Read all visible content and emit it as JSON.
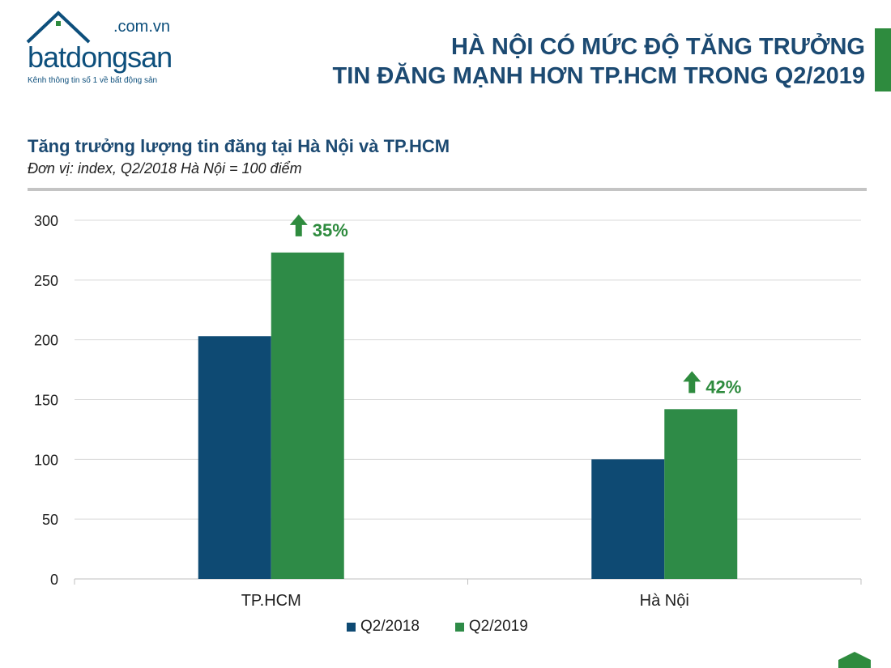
{
  "header": {
    "logo": {
      "domain": ".com.vn",
      "word": "batdongsan",
      "tagline": "Kênh thông tin số 1 về bất động sản"
    },
    "title_line1": "HÀ NỘI CÓ MỨC ĐỘ TĂNG TRƯỞNG",
    "title_line2": "TIN ĐĂNG MẠNH HƠN TP.HCM TRONG Q2/2019",
    "accent_color": "#2e8b3e"
  },
  "chart_data": {
    "type": "bar",
    "title": "Tăng trưởng lượng tin đăng tại Hà Nội và TP.HCM",
    "subtitle": "Đơn vị: index, Q2/2018 Hà Nội = 100 điểm",
    "categories": [
      "TP.HCM",
      "Hà Nội"
    ],
    "series": [
      {
        "name": "Q2/2018",
        "color": "#0e4a73",
        "values": [
          203,
          100
        ]
      },
      {
        "name": "Q2/2019",
        "color": "#2e8b47",
        "values": [
          273,
          142
        ]
      }
    ],
    "annotations": [
      {
        "category": "TP.HCM",
        "text": "35%",
        "icon": "up-arrow-icon"
      },
      {
        "category": "Hà Nội",
        "text": "42%",
        "icon": "up-arrow-icon"
      }
    ],
    "ylim": [
      0,
      300
    ],
    "yticks": [
      "0",
      "50",
      "100",
      "150",
      "200",
      "250",
      "300"
    ],
    "grid": true,
    "legend_position": "bottom"
  }
}
